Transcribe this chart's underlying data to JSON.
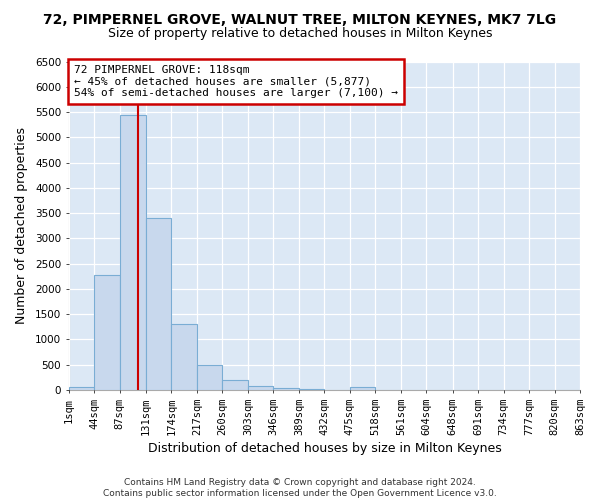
{
  "title": "72, PIMPERNEL GROVE, WALNUT TREE, MILTON KEYNES, MK7 7LG",
  "subtitle": "Size of property relative to detached houses in Milton Keynes",
  "xlabel": "Distribution of detached houses by size in Milton Keynes",
  "ylabel": "Number of detached properties",
  "bin_edges": [
    1,
    44,
    87,
    131,
    174,
    217,
    260,
    303,
    346,
    389,
    432,
    475,
    518,
    561,
    604,
    648,
    691,
    734,
    777,
    820,
    863
  ],
  "bin_labels": [
    "1sqm",
    "44sqm",
    "87sqm",
    "131sqm",
    "174sqm",
    "217sqm",
    "260sqm",
    "303sqm",
    "346sqm",
    "389sqm",
    "432sqm",
    "475sqm",
    "518sqm",
    "561sqm",
    "604sqm",
    "648sqm",
    "691sqm",
    "734sqm",
    "777sqm",
    "820sqm",
    "863sqm"
  ],
  "bar_heights": [
    50,
    2280,
    5450,
    3400,
    1310,
    490,
    195,
    80,
    30,
    10,
    5,
    55,
    0,
    0,
    0,
    0,
    0,
    0,
    0,
    0
  ],
  "bar_color": "#c8d8ed",
  "bar_edgecolor": "#7aadd4",
  "vline_x": 118,
  "vline_color": "#cc0000",
  "ylim": [
    0,
    6500
  ],
  "yticks": [
    0,
    500,
    1000,
    1500,
    2000,
    2500,
    3000,
    3500,
    4000,
    4500,
    5000,
    5500,
    6000,
    6500
  ],
  "annotation_text": "72 PIMPERNEL GROVE: 118sqm\n← 45% of detached houses are smaller (5,877)\n54% of semi-detached houses are larger (7,100) →",
  "annotation_box_facecolor": "#ffffff",
  "annotation_box_edgecolor": "#cc0000",
  "footer_line1": "Contains HM Land Registry data © Crown copyright and database right 2024.",
  "footer_line2": "Contains public sector information licensed under the Open Government Licence v3.0.",
  "fig_bg_color": "#ffffff",
  "plot_bg_color": "#dce8f5",
  "grid_color": "#ffffff",
  "title_fontsize": 10,
  "subtitle_fontsize": 9,
  "axis_label_fontsize": 9,
  "tick_fontsize": 7.5,
  "footer_fontsize": 6.5
}
